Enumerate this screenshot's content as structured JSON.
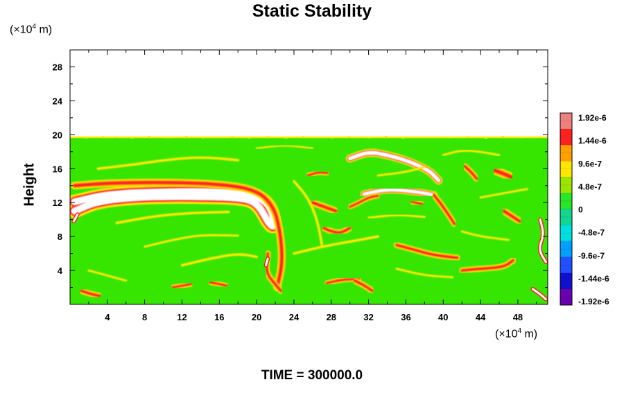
{
  "chart_data": {
    "type": "heatmap",
    "title": "Static Stability",
    "ylabel": "Height",
    "xlabel": "",
    "y_unit": {
      "pre": "(×10",
      "exp": "4",
      "post": " m)"
    },
    "x_unit": {
      "pre": "(×10",
      "exp": "4",
      "post": " m)"
    },
    "footer": "TIME = 300000.0",
    "xlim": [
      0,
      51.2
    ],
    "ylim": [
      0,
      30
    ],
    "x_ticks": [
      4,
      8,
      12,
      16,
      20,
      24,
      28,
      32,
      36,
      40,
      44,
      48
    ],
    "y_ticks": [
      4,
      8,
      12,
      16,
      20,
      24,
      28
    ],
    "data_top": 19.7,
    "colorbar": {
      "labels": [
        "1.92e-6",
        "1.44e-6",
        "9.6e-7",
        "4.8e-7",
        "0",
        "-4.8e-7",
        "-9.6e-7",
        "-1.44e-6",
        "-1.92e-6"
      ],
      "colors": [
        "#ef8080",
        "#ff2020",
        "#ffa000",
        "#ffe800",
        "#9ae600",
        "#28e628",
        "#10d890",
        "#00e0e0",
        "#00a0ff",
        "#2050ff",
        "#1010d0",
        "#6a00b0"
      ]
    },
    "features": [
      {
        "kind": "white",
        "path": [
          [
            0.5,
            12.1
          ],
          [
            4,
            13.0
          ],
          [
            10,
            13.3
          ],
          [
            16,
            13.3
          ],
          [
            20,
            12.8
          ],
          [
            21.5,
            11.6
          ],
          [
            22,
            9.0
          ],
          [
            21.3,
            9.5
          ],
          [
            20.3,
            11.6
          ],
          [
            19,
            12.5
          ],
          [
            15,
            12.7
          ],
          [
            8,
            12.7
          ],
          [
            3,
            12.2
          ],
          [
            0.5,
            11.0
          ]
        ],
        "w": 0.9,
        "c": "#ff2020"
      },
      {
        "kind": "red",
        "path": [
          [
            0.5,
            14.0
          ],
          [
            4,
            14.3
          ],
          [
            10,
            14.4
          ],
          [
            16,
            14.2
          ],
          [
            20,
            13.5
          ],
          [
            21.8,
            11.6
          ],
          [
            22.5,
            8.8
          ],
          [
            22.8,
            5.0
          ],
          [
            22.2,
            2.0
          ]
        ],
        "w": 0.45
      },
      {
        "kind": "red",
        "path": [
          [
            21.2,
            6.0
          ],
          [
            21.0,
            3.8
          ],
          [
            21.8,
            2.6
          ],
          [
            22.6,
            1.6
          ]
        ],
        "w": 0.35
      },
      {
        "kind": "white",
        "path": [
          [
            30,
            17.2
          ],
          [
            32,
            18.0
          ],
          [
            34,
            17.6
          ],
          [
            36,
            17.0
          ],
          [
            38.5,
            15.8
          ],
          [
            39.5,
            14.6
          ]
        ],
        "w": 0.5,
        "c": "#ff2020"
      },
      {
        "kind": "white",
        "path": [
          [
            31.5,
            13.0
          ],
          [
            34,
            13.6
          ],
          [
            37,
            13.3
          ],
          [
            39,
            12.9
          ]
        ],
        "w": 0.45,
        "c": "#ff2020"
      },
      {
        "kind": "red",
        "path": [
          [
            39,
            12.9
          ],
          [
            40,
            11.5
          ],
          [
            41.2,
            9.5
          ]
        ],
        "w": 0.35
      },
      {
        "kind": "red",
        "path": [
          [
            26,
            12.0
          ],
          [
            27.5,
            11.4
          ],
          [
            28.5,
            11.0
          ]
        ],
        "w": 0.4
      },
      {
        "kind": "red",
        "path": [
          [
            27.2,
            9.0
          ],
          [
            28,
            8.6
          ],
          [
            29,
            8.4
          ],
          [
            30,
            9.0
          ]
        ],
        "w": 0.35
      },
      {
        "kind": "red",
        "path": [
          [
            30,
            11.5
          ],
          [
            31,
            12.0
          ],
          [
            32,
            12.6
          ],
          [
            33,
            12.8
          ]
        ],
        "w": 0.3
      },
      {
        "kind": "red",
        "path": [
          [
            35,
            7.0
          ],
          [
            37,
            6.4
          ],
          [
            39,
            5.8
          ],
          [
            41.5,
            5.5
          ]
        ],
        "w": 0.35
      },
      {
        "kind": "red",
        "path": [
          [
            42,
            4.0
          ],
          [
            44,
            4.2
          ],
          [
            46.5,
            4.4
          ],
          [
            47.5,
            5.2
          ]
        ],
        "w": 0.35
      },
      {
        "kind": "red",
        "path": [
          [
            46.5,
            11.0
          ],
          [
            47.5,
            10.3
          ],
          [
            48.2,
            9.8
          ]
        ],
        "w": 0.4
      },
      {
        "kind": "red",
        "path": [
          [
            45.5,
            15.8
          ],
          [
            46.5,
            15.4
          ],
          [
            47.3,
            15.0
          ]
        ],
        "w": 0.5
      },
      {
        "kind": "red",
        "path": [
          [
            42.3,
            16.3
          ],
          [
            43,
            15.6
          ],
          [
            43.6,
            14.8
          ]
        ],
        "w": 0.35
      },
      {
        "kind": "red",
        "path": [
          [
            27.5,
            2.5
          ],
          [
            29,
            2.9
          ],
          [
            31,
            3.0
          ]
        ],
        "w": 0.3
      },
      {
        "kind": "red",
        "path": [
          [
            30.5,
            2.8
          ],
          [
            31.6,
            2.2
          ],
          [
            32.4,
            1.6
          ]
        ],
        "w": 0.35
      },
      {
        "kind": "red",
        "path": [
          [
            1.2,
            1.6
          ],
          [
            2.3,
            1.2
          ],
          [
            3.2,
            1.0
          ]
        ],
        "w": 0.35
      },
      {
        "kind": "red",
        "path": [
          [
            11.0,
            2.0
          ],
          [
            12.0,
            2.2
          ],
          [
            13.0,
            2.4
          ]
        ],
        "w": 0.3
      },
      {
        "kind": "red",
        "path": [
          [
            15.0,
            2.6
          ],
          [
            16.0,
            2.4
          ],
          [
            16.8,
            2.2
          ]
        ],
        "w": 0.3
      },
      {
        "kind": "red",
        "path": [
          [
            25.5,
            15.2
          ],
          [
            26.6,
            15.6
          ],
          [
            27.6,
            15.5
          ]
        ],
        "w": 0.3
      },
      {
        "kind": "red",
        "path": [
          [
            36.6,
            12.1
          ],
          [
            37.8,
            11.8
          ]
        ],
        "w": 0.3
      },
      {
        "kind": "yellow",
        "path": [
          [
            3,
            16.0
          ],
          [
            7,
            16.5
          ],
          [
            10,
            17.0
          ],
          [
            14,
            17.4
          ],
          [
            18,
            17.0
          ]
        ],
        "w": 0.3
      },
      {
        "kind": "yellow",
        "path": [
          [
            5,
            9.6
          ],
          [
            9,
            10.4
          ],
          [
            13,
            10.8
          ],
          [
            17,
            10.9
          ]
        ],
        "w": 0.3
      },
      {
        "kind": "yellow",
        "path": [
          [
            8,
            6.8
          ],
          [
            11,
            7.6
          ],
          [
            14,
            8.2
          ],
          [
            18,
            8.1
          ]
        ],
        "w": 0.25
      },
      {
        "kind": "yellow",
        "path": [
          [
            12,
            4.6
          ],
          [
            15,
            5.4
          ],
          [
            18,
            6.0
          ],
          [
            20,
            5.6
          ]
        ],
        "w": 0.3
      },
      {
        "kind": "yellow",
        "path": [
          [
            2,
            4.0
          ],
          [
            4,
            3.4
          ],
          [
            6,
            2.8
          ]
        ],
        "w": 0.25
      },
      {
        "kind": "yellow",
        "path": [
          [
            24,
            6.0
          ],
          [
            27,
            6.8
          ],
          [
            30,
            7.4
          ],
          [
            33,
            8.0
          ]
        ],
        "w": 0.3
      },
      {
        "kind": "yellow",
        "path": [
          [
            32,
            10.2
          ],
          [
            35,
            10.6
          ],
          [
            38,
            10.3
          ]
        ],
        "w": 0.25
      },
      {
        "kind": "yellow",
        "path": [
          [
            24,
            14.5
          ],
          [
            25.5,
            12.6
          ],
          [
            26.5,
            10.0
          ],
          [
            27,
            7.0
          ]
        ],
        "w": 0.3
      },
      {
        "kind": "yellow",
        "path": [
          [
            35,
            4.2
          ],
          [
            38,
            3.4
          ],
          [
            41,
            3.2
          ]
        ],
        "w": 0.25
      },
      {
        "kind": "yellow",
        "path": [
          [
            42,
            8.6
          ],
          [
            44,
            8.0
          ],
          [
            47,
            7.6
          ]
        ],
        "w": 0.25
      },
      {
        "kind": "yellow",
        "path": [
          [
            40,
            17.6
          ],
          [
            42,
            18.2
          ],
          [
            44,
            18.0
          ],
          [
            46,
            17.6
          ]
        ],
        "w": 0.25
      },
      {
        "kind": "yellow",
        "path": [
          [
            33,
            15.2
          ],
          [
            36,
            15.6
          ],
          [
            38,
            16.2
          ]
        ],
        "w": 0.25
      },
      {
        "kind": "yellow",
        "path": [
          [
            44,
            12.6
          ],
          [
            46,
            13.0
          ],
          [
            49,
            13.6
          ]
        ],
        "w": 0.25
      },
      {
        "kind": "yellow",
        "path": [
          [
            20,
            18.4
          ],
          [
            23,
            18.8
          ],
          [
            26,
            18.4
          ]
        ],
        "w": 0.2
      }
    ],
    "edge_blobs": [
      [
        [
          50.4,
          10.0
        ],
        [
          50.8,
          8.2
        ],
        [
          50.2,
          6.5
        ],
        [
          51.0,
          5.0
        ]
      ],
      [
        [
          49.6,
          1.8
        ],
        [
          50.4,
          1.2
        ],
        [
          51.0,
          0.6
        ]
      ],
      [
        [
          21.2,
          5.4
        ],
        [
          21.0,
          4.6
        ]
      ],
      [
        [
          0.8,
          10.6
        ],
        [
          0.4,
          9.8
        ]
      ]
    ]
  }
}
